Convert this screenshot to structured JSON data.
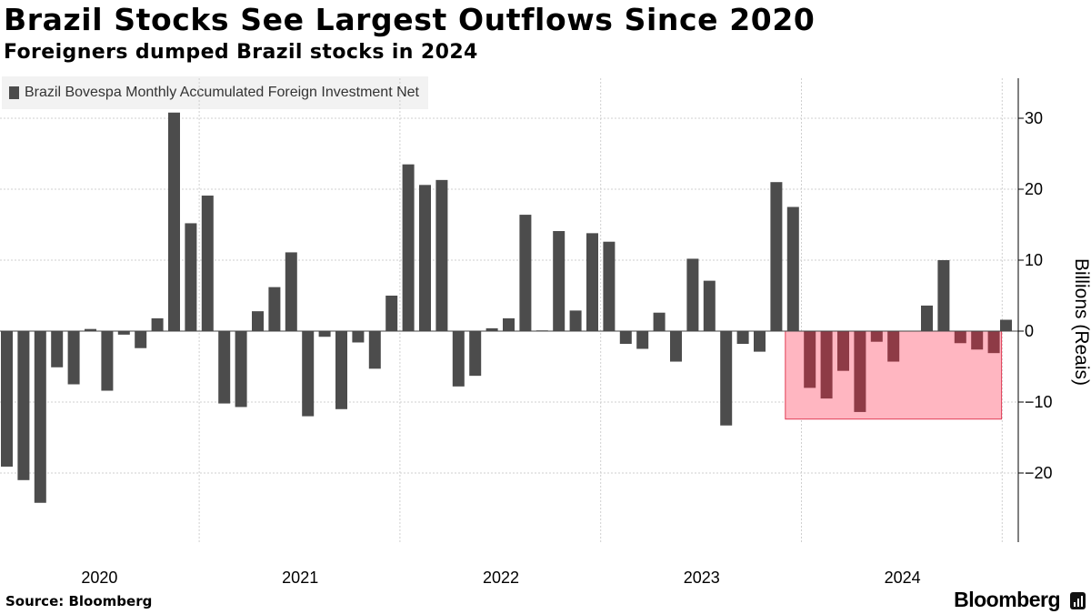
{
  "chart_data": {
    "type": "bar",
    "title": "Brazil Stocks See Largest Outflows Since 2020",
    "subtitle": "Foreigners dumped Brazil stocks in 2024",
    "ylabel": "Billions (Reais)",
    "legend": "Brazil Bovespa Monthly Accumulated Foreign Investment Net",
    "legend_position": "top-left",
    "ylim": [
      -28,
      36
    ],
    "yticks": [
      30,
      20,
      10,
      0,
      -10,
      -20
    ],
    "x_year_labels": [
      "2020",
      "2021",
      "2022",
      "2023",
      "2024"
    ],
    "grid": true,
    "highlight": {
      "from_index": 47,
      "to_index": 59,
      "color": "#ffb6c1",
      "bar_color": "#8e3b46"
    },
    "series": [
      {
        "categories": [
          "2020-01",
          "2020-02",
          "2020-03",
          "2020-04",
          "2020-05",
          "2020-06",
          "2020-07",
          "2020-08",
          "2020-09",
          "2020-10",
          "2020-11",
          "2020-12",
          "2021-01",
          "2021-02",
          "2021-03",
          "2021-04",
          "2021-05",
          "2021-06",
          "2021-07",
          "2021-08",
          "2021-09",
          "2021-10",
          "2021-11",
          "2021-12",
          "2022-01",
          "2022-02",
          "2022-03",
          "2022-04",
          "2022-05",
          "2022-06",
          "2022-07",
          "2022-08",
          "2022-09",
          "2022-10",
          "2022-11",
          "2022-12",
          "2023-01",
          "2023-02",
          "2023-03",
          "2023-04",
          "2023-05",
          "2023-06",
          "2023-07",
          "2023-08",
          "2023-09",
          "2023-10",
          "2023-11",
          "2023-12",
          "2024-01",
          "2024-02",
          "2024-03",
          "2024-04",
          "2024-05",
          "2024-06",
          "2024-07",
          "2024-08",
          "2024-09",
          "2024-10",
          "2024-11",
          "2024-12"
        ],
        "values": [
          -19.1,
          -21.0,
          -24.2,
          -5.1,
          -7.5,
          0.3,
          -8.4,
          -0.5,
          -2.4,
          1.8,
          30.8,
          15.2,
          19.1,
          -10.2,
          -10.7,
          2.8,
          6.2,
          11.1,
          -12.0,
          -0.8,
          -11.0,
          -1.6,
          -5.3,
          5.0,
          23.5,
          20.6,
          21.3,
          -7.8,
          -6.3,
          0.4,
          1.8,
          16.4,
          0.1,
          14.1,
          2.9,
          13.8,
          12.6,
          -1.8,
          -2.5,
          2.6,
          -4.3,
          10.2,
          7.1,
          -13.3,
          -1.8,
          -2.9,
          21.0,
          17.5,
          -8.0,
          -9.5,
          -5.6,
          -11.4,
          -1.5,
          -4.3,
          0.0,
          3.6,
          10.0,
          -1.7,
          -2.6,
          -3.1
        ]
      }
    ],
    "extra_value": 1.6
  },
  "footer": {
    "source": "Source: Bloomberg",
    "brand": "Bloomberg"
  }
}
